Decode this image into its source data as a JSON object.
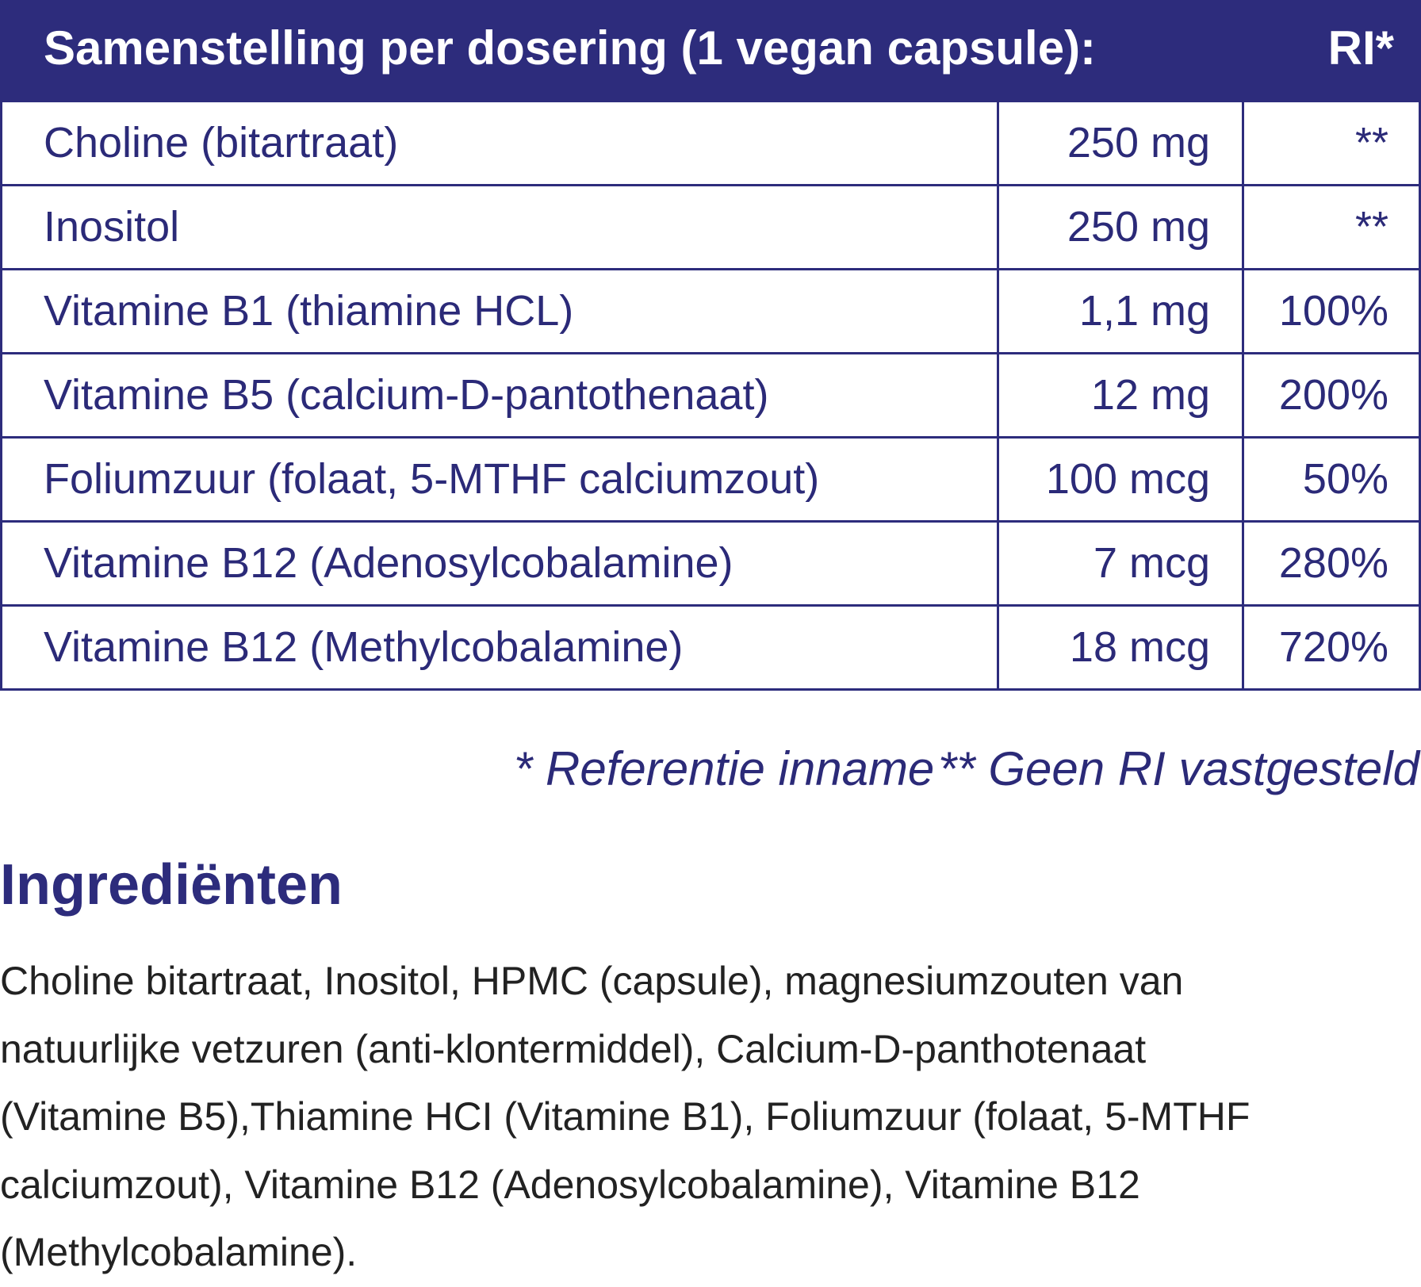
{
  "table": {
    "header": {
      "title": "Samenstelling per dosering (1 vegan capsule):",
      "ri": "RI*"
    },
    "rows": [
      [
        "Choline (bitartraat)",
        "250 mg",
        "**"
      ],
      [
        "Inositol",
        "250 mg",
        "**"
      ],
      [
        "Vitamine B1 (thiamine HCL)",
        "1,1 mg",
        "100%"
      ],
      [
        "Vitamine B5 (calcium-D-pantothenaat)",
        "12 mg",
        "200%"
      ],
      [
        "Foliumzuur (folaat, 5-MTHF calciumzout)",
        "100 mcg",
        "50%"
      ],
      [
        "Vitamine B12 (Adenosylcobalamine)",
        "7 mcg",
        "280%"
      ],
      [
        "Vitamine B12 (Methylcobalamine)",
        "18 mcg",
        "720%"
      ]
    ]
  },
  "footnotes": [
    "* Referentie inname",
    "** Geen RI vastgesteld"
  ],
  "ingredients": {
    "title": "Ingrediënten",
    "lines": [
      "Choline bitartraat, Inositol, HPMC (capsule), magnesiumzouten van",
      "natuurlijke vetzuren (anti-klontermiddel), Calcium-D-panthotenaat",
      "(Vitamine B5),Thiamine HCI (Vitamine B1), Foliumzuur (folaat, 5-MTHF",
      "calciumzout), Vitamine B12 (Adenosylcobalamine), Vitamine B12",
      "(Methylcobalamine)."
    ]
  }
}
